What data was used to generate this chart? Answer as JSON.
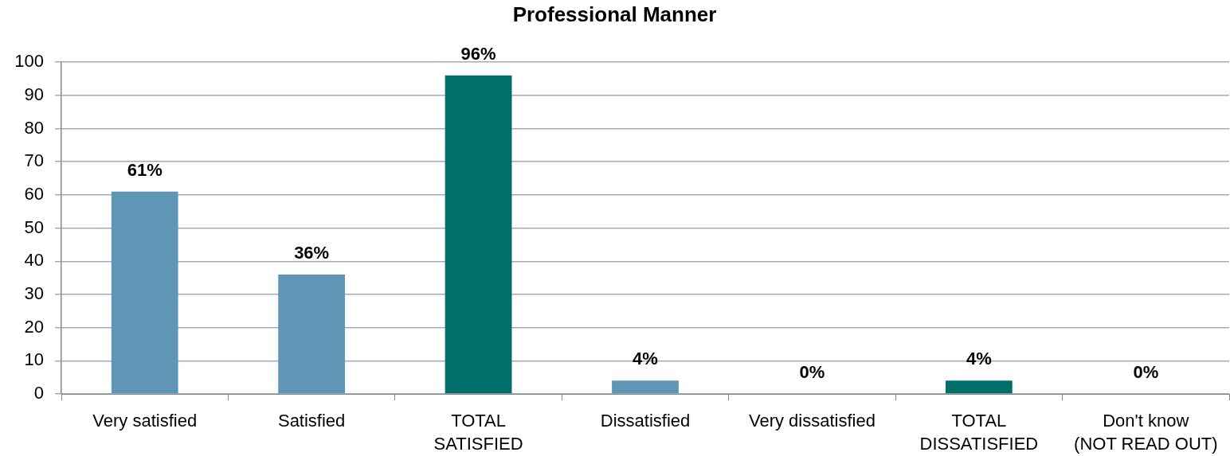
{
  "chart_data": {
    "type": "bar",
    "title": "Professional Manner",
    "categories": [
      "Very satisfied",
      "Satisfied",
      "TOTAL\nSATISFIED",
      "Dissatisfied",
      "Very dissatisfied",
      "TOTAL\nDISSATISFIED",
      "Don't know\n(NOT READ OUT)"
    ],
    "values": [
      61,
      36,
      96,
      4,
      0,
      4,
      0
    ],
    "colors": [
      "#5f95b5",
      "#5f95b5",
      "#006f6a",
      "#5f95b5",
      "#5f95b5",
      "#006f6a",
      "#5f95b5"
    ],
    "value_labels": [
      "61%",
      "36%",
      "96%",
      "4%",
      "0%",
      "4%",
      "0%"
    ],
    "ylim": [
      0,
      100
    ],
    "yticks": [
      0,
      10,
      20,
      30,
      40,
      50,
      60,
      70,
      80,
      90,
      100
    ],
    "grid": "y"
  }
}
